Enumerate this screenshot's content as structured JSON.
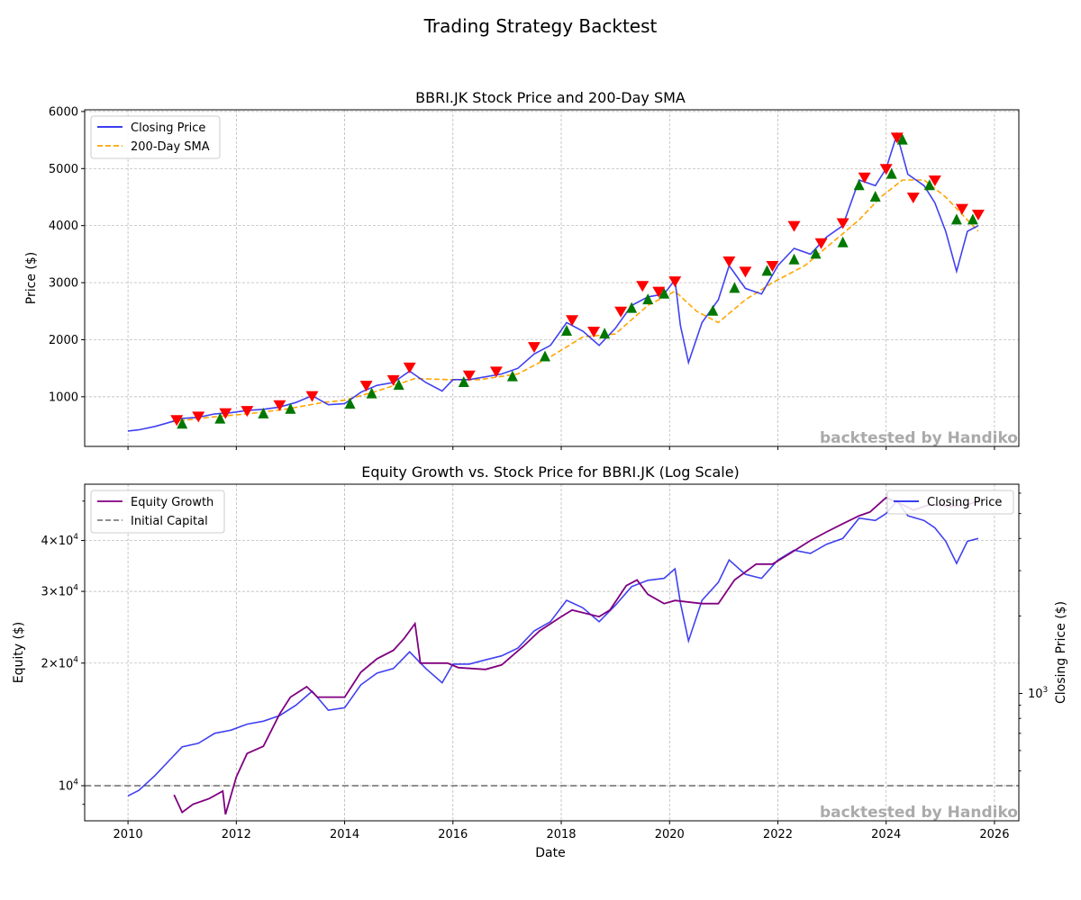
{
  "figure": {
    "title": "Trading Strategy Backtest",
    "watermark": "backtested by Handiko"
  },
  "chart_data": [
    {
      "type": "line",
      "title": "BBRI.JK Stock Price and 200-Day SMA",
      "xlabel": "",
      "ylabel": "Price ($)",
      "xlim": [
        2009.2,
        2026.45
      ],
      "ylim": [
        130,
        6030
      ],
      "yticks": [
        1000,
        2000,
        3000,
        4000,
        5000,
        6000
      ],
      "ytick_labels": [
        "1000",
        "2000",
        "3000",
        "4000",
        "5000",
        "6000"
      ],
      "grid": true,
      "legend_position": "upper-left",
      "legend": [
        "Closing Price",
        "200-Day SMA"
      ],
      "colors": {
        "price": "#2020ee",
        "sma": "#ffa500",
        "buy": "#007700",
        "sell": "#ff0000"
      },
      "series": [
        {
          "name": "Closing Price",
          "x": [
            2010.0,
            2010.2,
            2010.5,
            2010.8,
            2011.0,
            2011.3,
            2011.6,
            2011.9,
            2012.2,
            2012.5,
            2012.8,
            2013.1,
            2013.4,
            2013.7,
            2014.0,
            2014.3,
            2014.6,
            2014.9,
            2015.2,
            2015.5,
            2015.8,
            2016.0,
            2016.3,
            2016.6,
            2016.9,
            2017.2,
            2017.5,
            2017.8,
            2018.1,
            2018.4,
            2018.7,
            2019.0,
            2019.3,
            2019.6,
            2019.9,
            2020.1,
            2020.2,
            2020.35,
            2020.6,
            2020.9,
            2021.1,
            2021.4,
            2021.7,
            2022.0,
            2022.3,
            2022.6,
            2022.9,
            2023.2,
            2023.5,
            2023.8,
            2024.0,
            2024.2,
            2024.4,
            2024.7,
            2024.9,
            2025.1,
            2025.3,
            2025.5,
            2025.7
          ],
          "y": [
            400,
            420,
            480,
            560,
            620,
            640,
            700,
            720,
            760,
            780,
            820,
            900,
            1020,
            860,
            880,
            1080,
            1200,
            1250,
            1450,
            1250,
            1100,
            1300,
            1300,
            1350,
            1400,
            1500,
            1750,
            1900,
            2300,
            2150,
            1900,
            2200,
            2600,
            2750,
            2800,
            3050,
            2250,
            1600,
            2300,
            2700,
            3300,
            2900,
            2800,
            3300,
            3600,
            3500,
            3800,
            4000,
            4800,
            4700,
            5000,
            5600,
            4900,
            4700,
            4400,
            3900,
            3200,
            3900,
            4000
          ]
        },
        {
          "name": "200-Day SMA",
          "x": [
            2010.8,
            2011.5,
            2012.2,
            2012.9,
            2013.6,
            2014.0,
            2014.6,
            2015.3,
            2015.9,
            2016.5,
            2017.2,
            2017.8,
            2018.4,
            2019.0,
            2019.6,
            2020.1,
            2020.5,
            2020.9,
            2021.4,
            2021.9,
            2022.5,
            2023.0,
            2023.5,
            2023.9,
            2024.3,
            2024.7,
            2025.1,
            2025.4,
            2025.7
          ],
          "y": [
            560,
            640,
            700,
            780,
            900,
            940,
            1100,
            1320,
            1300,
            1300,
            1400,
            1700,
            2050,
            2100,
            2600,
            2850,
            2500,
            2300,
            2700,
            3000,
            3300,
            3700,
            4100,
            4500,
            4800,
            4800,
            4500,
            4200,
            3900
          ]
        }
      ],
      "buy_signals": {
        "x": [
          2011.0,
          2011.7,
          2012.5,
          2013.0,
          2014.1,
          2014.5,
          2015.0,
          2016.2,
          2017.1,
          2017.7,
          2018.1,
          2018.8,
          2019.3,
          2019.6,
          2019.9,
          2020.8,
          2021.2,
          2021.8,
          2022.3,
          2022.7,
          2023.2,
          2023.5,
          2023.8,
          2024.1,
          2024.3,
          2024.8,
          2025.3,
          2025.6
        ],
        "y": [
          520,
          610,
          700,
          780,
          870,
          1050,
          1200,
          1250,
          1350,
          1700,
          2150,
          2100,
          2550,
          2700,
          2800,
          2500,
          2900,
          3200,
          3400,
          3500,
          3700,
          4700,
          4500,
          4900,
          5500,
          4700,
          4100,
          4100
        ]
      },
      "sell_signals": {
        "x": [
          2010.9,
          2011.3,
          2011.8,
          2012.2,
          2012.8,
          2013.4,
          2014.4,
          2014.9,
          2015.2,
          2016.3,
          2016.8,
          2017.5,
          2018.2,
          2018.6,
          2019.1,
          2019.5,
          2019.8,
          2020.1,
          2021.1,
          2021.4,
          2021.9,
          2022.3,
          2022.8,
          2023.2,
          2023.6,
          2024.0,
          2024.2,
          2024.5,
          2024.9,
          2025.4,
          2025.7
        ],
        "y": [
          600,
          660,
          720,
          760,
          860,
          1020,
          1200,
          1300,
          1520,
          1380,
          1450,
          1880,
          2350,
          2150,
          2500,
          2950,
          2850,
          3030,
          3380,
          3200,
          3300,
          4000,
          3700,
          4050,
          4850,
          5000,
          5550,
          4500,
          4800,
          4300,
          4200
        ]
      }
    },
    {
      "type": "line",
      "title": "Equity Growth vs. Stock Price for BBRI.JK (Log Scale)",
      "xlabel": "Date",
      "ylabel": "Equity ($)",
      "y2label": "Closing Price ($)",
      "yscale": "log",
      "xlim": [
        2009.2,
        2026.45
      ],
      "ylim": [
        8200,
        55000
      ],
      "xticks": [
        2010,
        2012,
        2014,
        2016,
        2018,
        2020,
        2022,
        2024,
        2026
      ],
      "xtick_labels": [
        "2010",
        "2012",
        "2014",
        "2016",
        "2018",
        "2020",
        "2022",
        "2024",
        "2026"
      ],
      "ytick_labels": [
        "10^4",
        "2 x 10^4",
        "3 x 10^4",
        "4 x 10^4"
      ],
      "y_tick_mantissas": [
        "",
        "2",
        "3",
        "4"
      ],
      "y2tick_label": "10^3",
      "y2lim": [
        320,
        6500
      ],
      "grid": true,
      "legend_position": "upper-left",
      "legend": [
        "Equity Growth",
        "Initial Capital"
      ],
      "legend_right": [
        "Closing Price"
      ],
      "colors": {
        "equity": "#800080",
        "initial": "#808080",
        "price": "#2020ee"
      },
      "initial_capital": 10000,
      "series": [
        {
          "name": "Equity Growth",
          "x": [
            2010.85,
            2011.0,
            2011.2,
            2011.5,
            2011.75,
            2011.8,
            2012.0,
            2012.2,
            2012.5,
            2012.8,
            2013.0,
            2013.3,
            2013.5,
            2013.7,
            2014.0,
            2014.3,
            2014.6,
            2014.9,
            2015.1,
            2015.3,
            2015.4,
            2015.9,
            2016.1,
            2016.6,
            2016.9,
            2017.3,
            2017.6,
            2018.0,
            2018.2,
            2018.7,
            2018.9,
            2019.2,
            2019.4,
            2019.6,
            2019.9,
            2020.1,
            2020.6,
            2020.9,
            2021.2,
            2021.6,
            2021.9,
            2022.2,
            2022.6,
            2022.9,
            2023.2,
            2023.5,
            2023.7,
            2024.0,
            2024.3,
            2024.5,
            2024.8,
            2025.2,
            2025.5,
            2025.7
          ],
          "y": [
            9500,
            8600,
            9000,
            9300,
            9700,
            8500,
            10500,
            12000,
            12500,
            15000,
            16500,
            17500,
            16500,
            16500,
            16500,
            19000,
            20500,
            21500,
            23000,
            25000,
            20000,
            20000,
            19500,
            19300,
            19800,
            22000,
            24000,
            26000,
            27000,
            26000,
            27000,
            31000,
            32000,
            29500,
            28000,
            28500,
            28000,
            28000,
            32000,
            35000,
            35000,
            37000,
            40000,
            42000,
            44000,
            46000,
            47000,
            51000,
            49000,
            47500,
            49000,
            48500,
            49000,
            50000
          ]
        },
        {
          "name": "Closing Price",
          "x": [
            2010.0,
            2010.2,
            2010.5,
            2010.8,
            2011.0,
            2011.3,
            2011.6,
            2011.9,
            2012.2,
            2012.5,
            2012.8,
            2013.1,
            2013.4,
            2013.7,
            2014.0,
            2014.3,
            2014.6,
            2014.9,
            2015.2,
            2015.5,
            2015.8,
            2016.0,
            2016.3,
            2016.6,
            2016.9,
            2017.2,
            2017.5,
            2017.8,
            2018.1,
            2018.4,
            2018.7,
            2019.0,
            2019.3,
            2019.6,
            2019.9,
            2020.1,
            2020.2,
            2020.35,
            2020.6,
            2020.9,
            2021.1,
            2021.4,
            2021.7,
            2022.0,
            2022.3,
            2022.6,
            2022.9,
            2023.2,
            2023.5,
            2023.8,
            2024.0,
            2024.2,
            2024.4,
            2024.7,
            2024.9,
            2025.1,
            2025.3,
            2025.5,
            2025.7
          ],
          "y": [
            400,
            420,
            480,
            560,
            620,
            640,
            700,
            720,
            760,
            780,
            820,
            900,
            1020,
            860,
            880,
            1080,
            1200,
            1250,
            1450,
            1250,
            1100,
            1300,
            1300,
            1350,
            1400,
            1500,
            1750,
            1900,
            2300,
            2150,
            1900,
            2200,
            2600,
            2750,
            2800,
            3050,
            2250,
            1600,
            2300,
            2700,
            3300,
            2900,
            2800,
            3300,
            3600,
            3500,
            3800,
            4000,
            4800,
            4700,
            5000,
            5600,
            4900,
            4700,
            4400,
            3900,
            3200,
            3900,
            4000
          ]
        }
      ]
    }
  ]
}
